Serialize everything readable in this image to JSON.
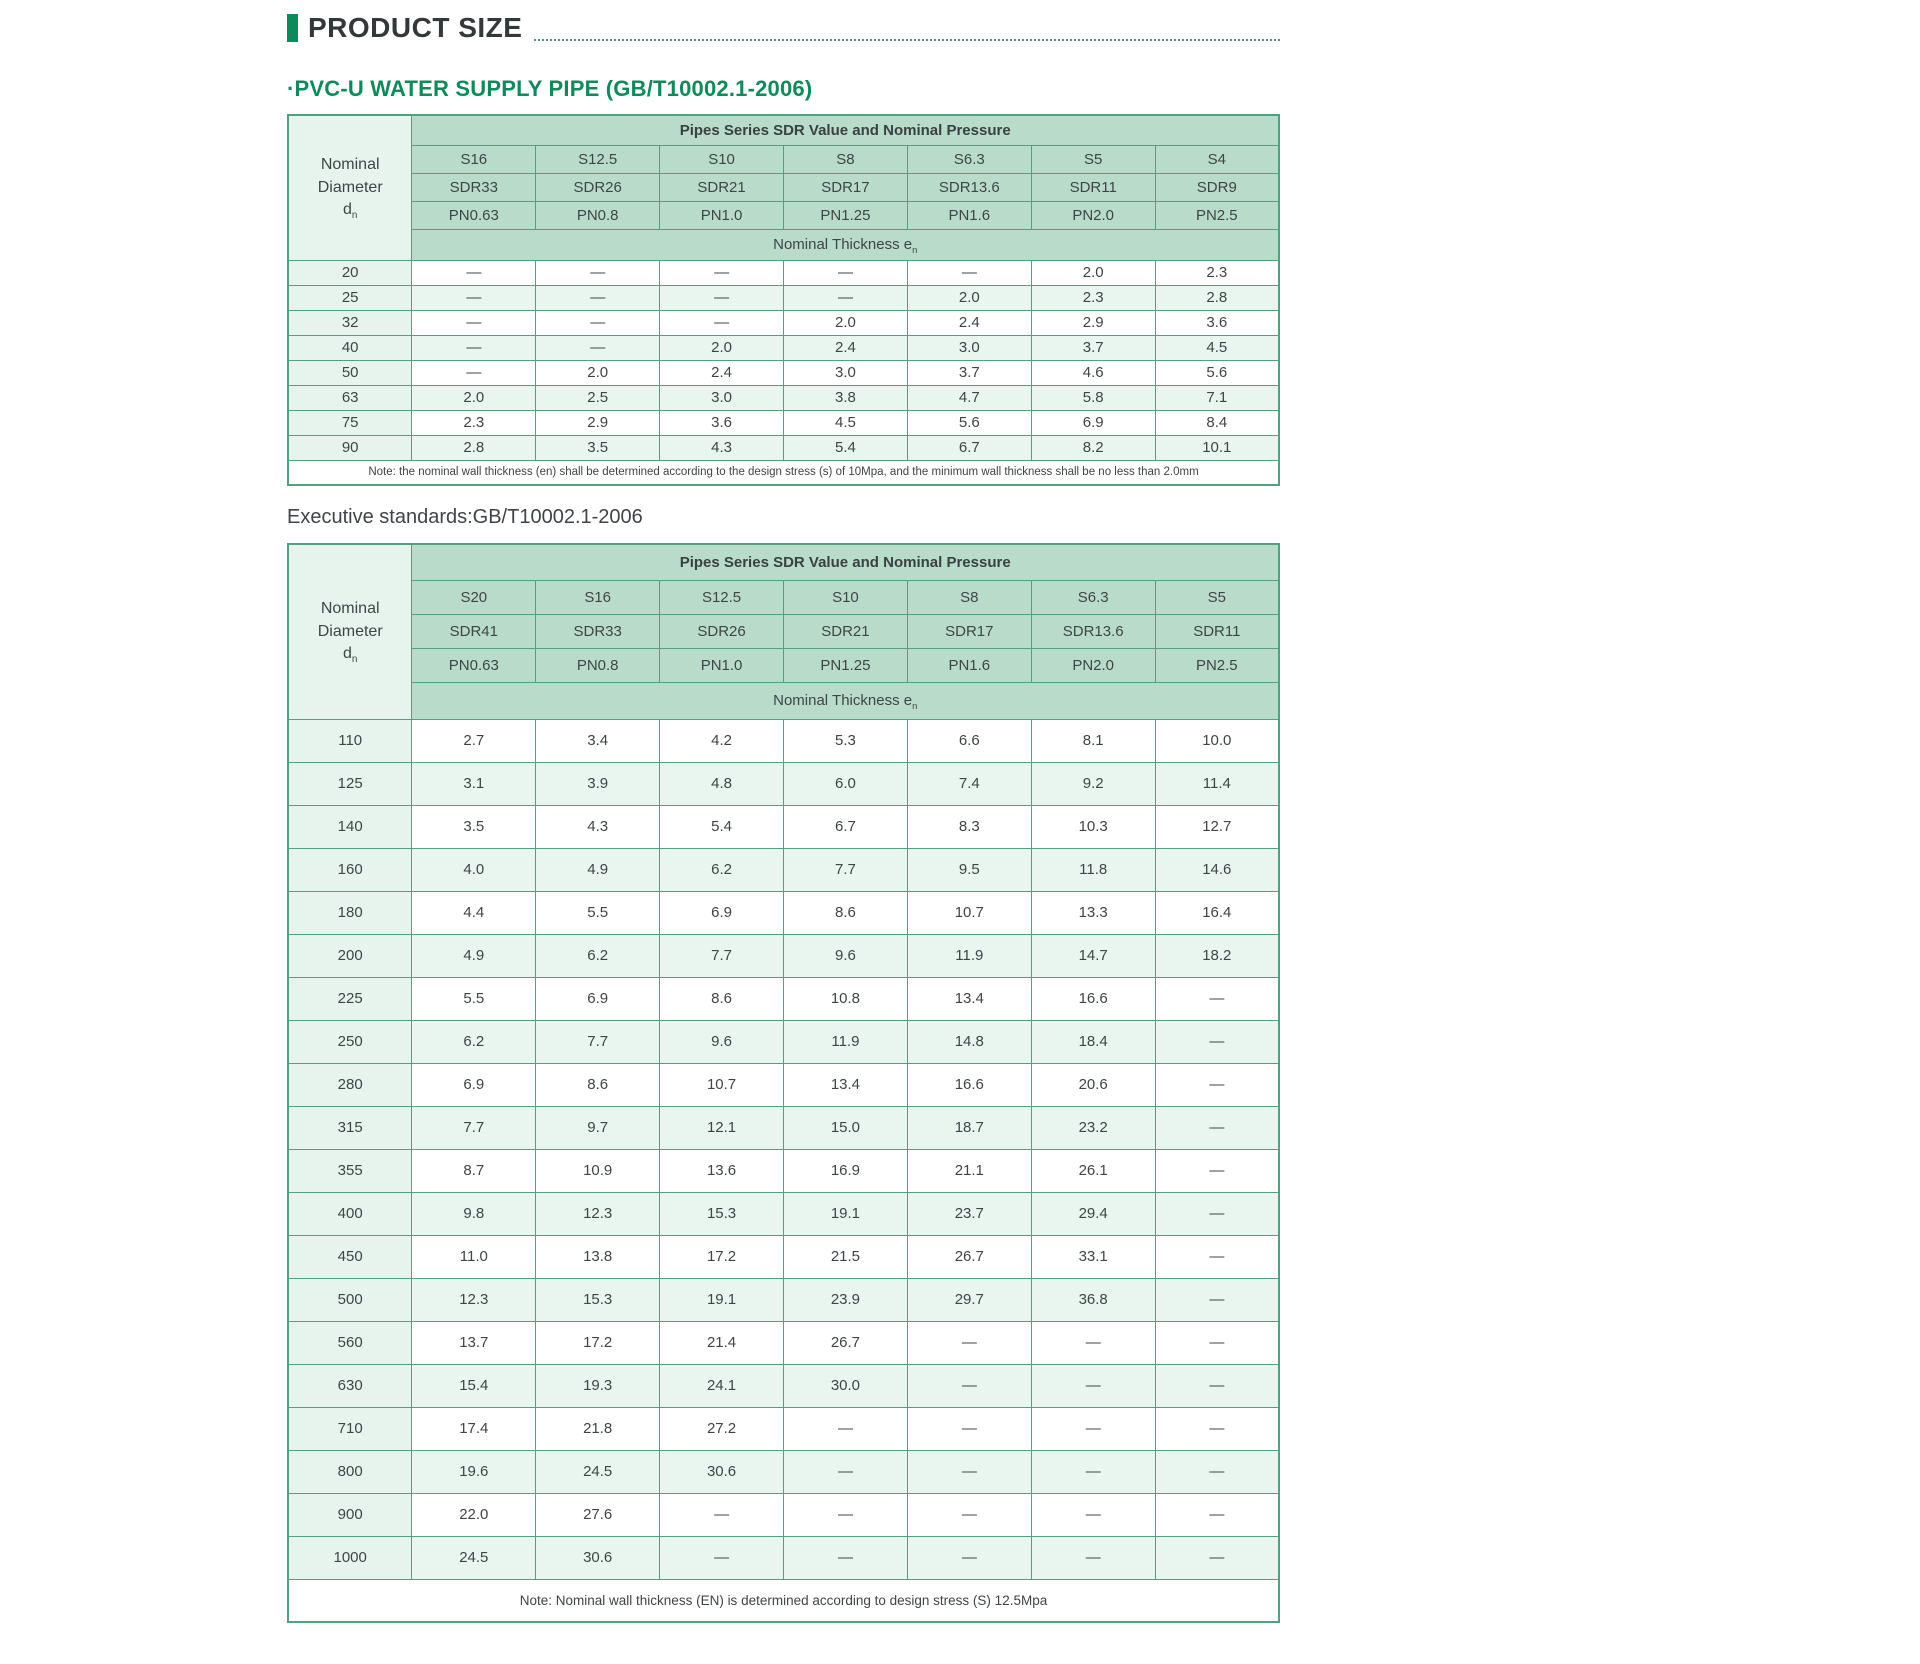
{
  "page": {
    "title": "PRODUCT SIZE",
    "section_bullet": "·",
    "section_title": "PVC-U WATER SUPPLY PIPE (GB/T10002.1-2006)",
    "executive_standards": "Executive standards:GB/T10002.1-2006"
  },
  "colors": {
    "accent_green": "#0c8a59",
    "heading_green": "#0e8a5c",
    "table_border": "#4fa182",
    "header_cell_bg": "#b9dcca",
    "left_column_bg": "#e7f4ed",
    "alt_row_bg": "#e9f5ef",
    "text": "#3f4448"
  },
  "table1": {
    "header_group": "Pipes Series SDR Value and Nominal Pressure",
    "row_header_label": "Nominal Diameter",
    "symbol_main": "d",
    "symbol_sub": "n",
    "thickness_label": "Nominal Thickness e",
    "thickness_sub": "n",
    "series": [
      "S16",
      "S12.5",
      "S10",
      "S8",
      "S6.3",
      "S5",
      "S4"
    ],
    "sdr": [
      "SDR33",
      "SDR26",
      "SDR21",
      "SDR17",
      "SDR13.6",
      "SDR11",
      "SDR9"
    ],
    "pn": [
      "PN0.63",
      "PN0.8",
      "PN1.0",
      "PN1.25",
      "PN1.6",
      "PN2.0",
      "PN2.5"
    ],
    "rows": [
      {
        "dn": "20",
        "values": [
          "—",
          "—",
          "—",
          "—",
          "—",
          "2.0",
          "2.3"
        ]
      },
      {
        "dn": "25",
        "values": [
          "—",
          "—",
          "—",
          "—",
          "2.0",
          "2.3",
          "2.8"
        ]
      },
      {
        "dn": "32",
        "values": [
          "—",
          "—",
          "—",
          "2.0",
          "2.4",
          "2.9",
          "3.6"
        ]
      },
      {
        "dn": "40",
        "values": [
          "—",
          "—",
          "2.0",
          "2.4",
          "3.0",
          "3.7",
          "4.5"
        ]
      },
      {
        "dn": "50",
        "values": [
          "—",
          "2.0",
          "2.4",
          "3.0",
          "3.7",
          "4.6",
          "5.6"
        ]
      },
      {
        "dn": "63",
        "values": [
          "2.0",
          "2.5",
          "3.0",
          "3.8",
          "4.7",
          "5.8",
          "7.1"
        ]
      },
      {
        "dn": "75",
        "values": [
          "2.3",
          "2.9",
          "3.6",
          "4.5",
          "5.6",
          "6.9",
          "8.4"
        ]
      },
      {
        "dn": "90",
        "values": [
          "2.8",
          "3.5",
          "4.3",
          "5.4",
          "6.7",
          "8.2",
          "10.1"
        ]
      }
    ],
    "note": "Note: the nominal wall thickness (en) shall be determined according to the design stress (s) of 10Mpa, and the minimum wall thickness shall be no less than 2.0mm"
  },
  "table2": {
    "header_group": "Pipes Series SDR Value and Nominal Pressure",
    "row_header_label": "Nominal Diameter",
    "symbol_main": "d",
    "symbol_sub": "n",
    "thickness_label": "Nominal Thickness e",
    "thickness_sub": "n",
    "series": [
      "S20",
      "S16",
      "S12.5",
      "S10",
      "S8",
      "S6.3",
      "S5"
    ],
    "sdr": [
      "SDR41",
      "SDR33",
      "SDR26",
      "SDR21",
      "SDR17",
      "SDR13.6",
      "SDR11"
    ],
    "pn": [
      "PN0.63",
      "PN0.8",
      "PN1.0",
      "PN1.25",
      "PN1.6",
      "PN2.0",
      "PN2.5"
    ],
    "rows": [
      {
        "dn": "110",
        "values": [
          "2.7",
          "3.4",
          "4.2",
          "5.3",
          "6.6",
          "8.1",
          "10.0"
        ]
      },
      {
        "dn": "125",
        "values": [
          "3.1",
          "3.9",
          "4.8",
          "6.0",
          "7.4",
          "9.2",
          "11.4"
        ]
      },
      {
        "dn": "140",
        "values": [
          "3.5",
          "4.3",
          "5.4",
          "6.7",
          "8.3",
          "10.3",
          "12.7"
        ]
      },
      {
        "dn": "160",
        "values": [
          "4.0",
          "4.9",
          "6.2",
          "7.7",
          "9.5",
          "11.8",
          "14.6"
        ]
      },
      {
        "dn": "180",
        "values": [
          "4.4",
          "5.5",
          "6.9",
          "8.6",
          "10.7",
          "13.3",
          "16.4"
        ]
      },
      {
        "dn": "200",
        "values": [
          "4.9",
          "6.2",
          "7.7",
          "9.6",
          "11.9",
          "14.7",
          "18.2"
        ]
      },
      {
        "dn": "225",
        "values": [
          "5.5",
          "6.9",
          "8.6",
          "10.8",
          "13.4",
          "16.6",
          "—"
        ]
      },
      {
        "dn": "250",
        "values": [
          "6.2",
          "7.7",
          "9.6",
          "11.9",
          "14.8",
          "18.4",
          "—"
        ]
      },
      {
        "dn": "280",
        "values": [
          "6.9",
          "8.6",
          "10.7",
          "13.4",
          "16.6",
          "20.6",
          "—"
        ]
      },
      {
        "dn": "315",
        "values": [
          "7.7",
          "9.7",
          "12.1",
          "15.0",
          "18.7",
          "23.2",
          "—"
        ]
      },
      {
        "dn": "355",
        "values": [
          "8.7",
          "10.9",
          "13.6",
          "16.9",
          "21.1",
          "26.1",
          "—"
        ]
      },
      {
        "dn": "400",
        "values": [
          "9.8",
          "12.3",
          "15.3",
          "19.1",
          "23.7",
          "29.4",
          "—"
        ]
      },
      {
        "dn": "450",
        "values": [
          "11.0",
          "13.8",
          "17.2",
          "21.5",
          "26.7",
          "33.1",
          "—"
        ]
      },
      {
        "dn": "500",
        "values": [
          "12.3",
          "15.3",
          "19.1",
          "23.9",
          "29.7",
          "36.8",
          "—"
        ]
      },
      {
        "dn": "560",
        "values": [
          "13.7",
          "17.2",
          "21.4",
          "26.7",
          "—",
          "—",
          "—"
        ]
      },
      {
        "dn": "630",
        "values": [
          "15.4",
          "19.3",
          "24.1",
          "30.0",
          "—",
          "—",
          "—"
        ]
      },
      {
        "dn": "710",
        "values": [
          "17.4",
          "21.8",
          "27.2",
          "—",
          "—",
          "—",
          "—"
        ]
      },
      {
        "dn": "800",
        "values": [
          "19.6",
          "24.5",
          "30.6",
          "—",
          "—",
          "—",
          "—"
        ]
      },
      {
        "dn": "900",
        "values": [
          "22.0",
          "27.6",
          "—",
          "—",
          "—",
          "—",
          "—"
        ]
      },
      {
        "dn": "1000",
        "values": [
          "24.5",
          "30.6",
          "—",
          "—",
          "—",
          "—",
          "—"
        ]
      }
    ],
    "note": "Note: Nominal wall thickness (EN) is determined according to design stress (S) 12.5Mpa"
  }
}
